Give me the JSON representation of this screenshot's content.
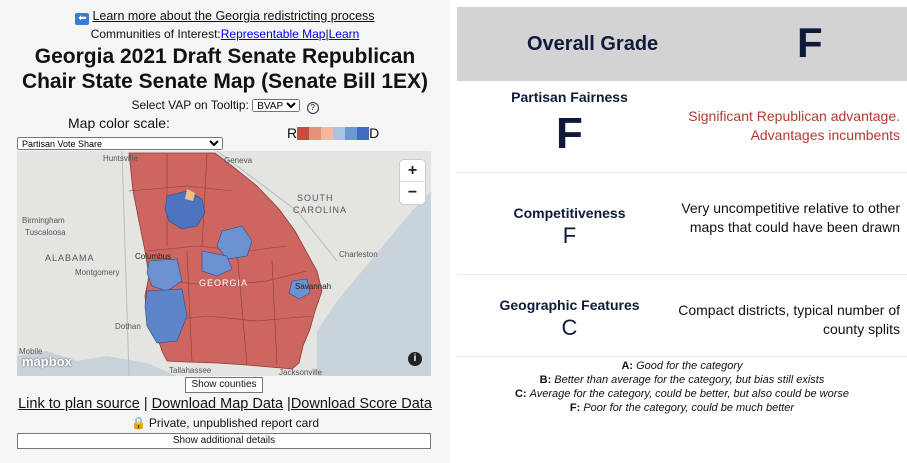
{
  "header": {
    "back_link": "Learn more about the Georgia redistricting process",
    "coi_prefix": "Communities of Interest:",
    "coi_link1": "Representable Map",
    "coi_sep": "|",
    "coi_link2": "Learn",
    "title": "Georgia 2021 Draft Senate Republican Chair State Senate Map (Senate Bill 1EX)"
  },
  "tooltip": {
    "label": "Select VAP on Tooltip:",
    "selected": "BVAP"
  },
  "map_scale": {
    "label": "Map color scale:",
    "selected": "Partisan Vote Share",
    "legend_left": "R",
    "legend_right": "D",
    "colors": [
      "#c84b3f",
      "#e59377",
      "#f0b99c",
      "#a8c3e0",
      "#6c97d3",
      "#3f6cc0"
    ]
  },
  "map": {
    "places": {
      "huntsville": "Huntsville",
      "birmingham": "Birmingham",
      "tuscaloosa": "Tuscaloosa",
      "alabama": "ALABAMA",
      "montgomery": "Montgomery",
      "columbus": "Columbus",
      "georgia": "GEORGIA",
      "geneva": "Geneva",
      "south_carolina_1": "SOUTH",
      "south_carolina_2": "CAROLINA",
      "charleston": "Charleston",
      "savannah": "Savannah",
      "dothan": "Dothan",
      "mobile": "Mobile",
      "tallahassee": "Tallahassee",
      "jacksonville": "Jacksonville"
    },
    "zoom_in": "+",
    "zoom_out": "−",
    "attribution": "mapbox",
    "info": "i"
  },
  "buttons": {
    "show_counties": "Show counties",
    "show_details": "Show additional details"
  },
  "links": {
    "plan_source": "Link to plan source",
    "map_data": "Download Map Data",
    "score_data": "Download Score Data",
    "sep1": " | ",
    "sep2": " |"
  },
  "privacy": "Private, unpublished report card",
  "report": {
    "overall_label": "Overall Grade",
    "overall_grade": "F",
    "rows": [
      {
        "category": "Partisan Fairness",
        "grade": "F",
        "desc": "Significant Republican advantage. Advantages incumbents"
      },
      {
        "category": "Competitiveness",
        "grade": "F",
        "desc": "Very uncompetitive relative to other maps that could have been drawn"
      },
      {
        "category": "Geographic Features",
        "grade": "C",
        "desc": "Compact districts, typical number of county splits"
      }
    ],
    "key": [
      {
        "grade": "A:",
        "text": "Good for the category"
      },
      {
        "grade": "B:",
        "text": "Better than average for the category, but bias still exists"
      },
      {
        "grade": "C:",
        "text": "Average for the category, could be better, but also could be worse"
      },
      {
        "grade": "F:",
        "text": "Poor for the category, could be much better"
      }
    ]
  }
}
